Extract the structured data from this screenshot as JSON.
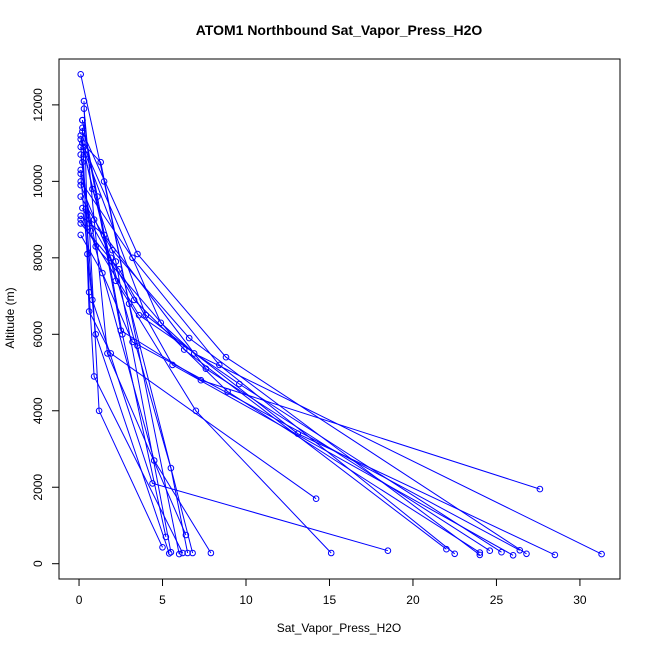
{
  "chart_data": {
    "type": "line",
    "title": "ATOM1 Northbound Sat_Vapor_Press_H2O",
    "xlabel": "Sat_Vapor_Press_H2O",
    "ylabel": "Altitude (m)",
    "xlim": [
      -1.2,
      32.4
    ],
    "ylim": [
      -400,
      13200
    ],
    "x_ticks": [
      0,
      5,
      10,
      15,
      20,
      25,
      30
    ],
    "y_ticks": [
      0,
      2000,
      4000,
      6000,
      8000,
      10000,
      12000
    ],
    "grid": false,
    "legend": "none",
    "series_color": "#0000ff",
    "series": [
      {
        "x": [
          0.1,
          1.5,
          3.5,
          6.0
        ],
        "y": [
          12800,
          10000,
          5700,
          250
        ]
      },
      {
        "x": [
          0.2,
          1.1,
          2.6,
          5.2
        ],
        "y": [
          11600,
          9600,
          6000,
          700
        ]
      },
      {
        "x": [
          0.1,
          0.8,
          2.2,
          5.5
        ],
        "y": [
          11200,
          9800,
          7900,
          300
        ]
      },
      {
        "x": [
          0.3,
          0.9,
          1.7,
          6.4
        ],
        "y": [
          11900,
          9000,
          5500,
          750
        ]
      },
      {
        "x": [
          0.1,
          0.6,
          1.2,
          5.0
        ],
        "y": [
          10900,
          8900,
          4000,
          430
        ]
      },
      {
        "x": [
          0.2,
          1.3,
          3.0,
          6.8
        ],
        "y": [
          11000,
          10500,
          6800,
          280
        ]
      },
      {
        "x": [
          0.1,
          0.7,
          4.5,
          7.9
        ],
        "y": [
          10700,
          8700,
          2700,
          280
        ]
      },
      {
        "x": [
          0.1,
          0.5,
          1.0,
          5.4
        ],
        "y": [
          10200,
          8100,
          6000,
          270
        ]
      },
      {
        "x": [
          0.3,
          0.6,
          0.9,
          6.2
        ],
        "y": [
          12100,
          7100,
          4900,
          280
        ]
      },
      {
        "x": [
          0.1,
          1.9,
          5.5,
          6.5
        ],
        "y": [
          9900,
          8000,
          2500,
          280
        ]
      },
      {
        "x": [
          0.2,
          0.6,
          1.9,
          14.2
        ],
        "y": [
          11400,
          6600,
          5500,
          1700
        ]
      },
      {
        "x": [
          0.1,
          2.2,
          7.0,
          15.1
        ],
        "y": [
          11100,
          7400,
          4000,
          280
        ]
      },
      {
        "x": [
          0.2,
          0.8,
          4.4,
          18.5
        ],
        "y": [
          10500,
          6900,
          2100,
          340
        ]
      },
      {
        "x": [
          0.1,
          1.0,
          6.3,
          22.0
        ],
        "y": [
          10300,
          8300,
          5600,
          380
        ]
      },
      {
        "x": [
          0.1,
          3.2,
          8.4,
          22.5
        ],
        "y": [
          10000,
          8000,
          5200,
          260
        ]
      },
      {
        "x": [
          0.1,
          2.0,
          6.6,
          24.0
        ],
        "y": [
          9600,
          8200,
          5900,
          230
        ]
      },
      {
        "x": [
          0.2,
          3.3,
          8.9,
          24.0
        ],
        "y": [
          9300,
          6900,
          4500,
          290
        ]
      },
      {
        "x": [
          0.1,
          1.5,
          7.6,
          24.6
        ],
        "y": [
          9100,
          8600,
          5100,
          340
        ]
      },
      {
        "x": [
          0.1,
          3.6,
          9.6,
          25.3
        ],
        "y": [
          9000,
          6500,
          4700,
          300
        ]
      },
      {
        "x": [
          0.1,
          2.4,
          5.6,
          26.0
        ],
        "y": [
          8900,
          7700,
          5200,
          220
        ]
      },
      {
        "x": [
          0.1,
          1.4,
          3.2,
          26.4
        ],
        "y": [
          8600,
          7600,
          5800,
          350
        ]
      },
      {
        "x": [
          0.2,
          2.5,
          7.3,
          27.6
        ],
        "y": [
          11600,
          6100,
          4800,
          1950
        ]
      },
      {
        "x": [
          0.4,
          4.0,
          13.1,
          28.5
        ],
        "y": [
          10700,
          6500,
          3400,
          230
        ]
      },
      {
        "x": [
          0.2,
          3.5,
          8.8,
          26.8
        ],
        "y": [
          11300,
          8100,
          5400,
          260
        ]
      },
      {
        "x": [
          0.3,
          4.9,
          6.9,
          31.3
        ],
        "y": [
          10900,
          6300,
          5500,
          250
        ]
      }
    ]
  }
}
